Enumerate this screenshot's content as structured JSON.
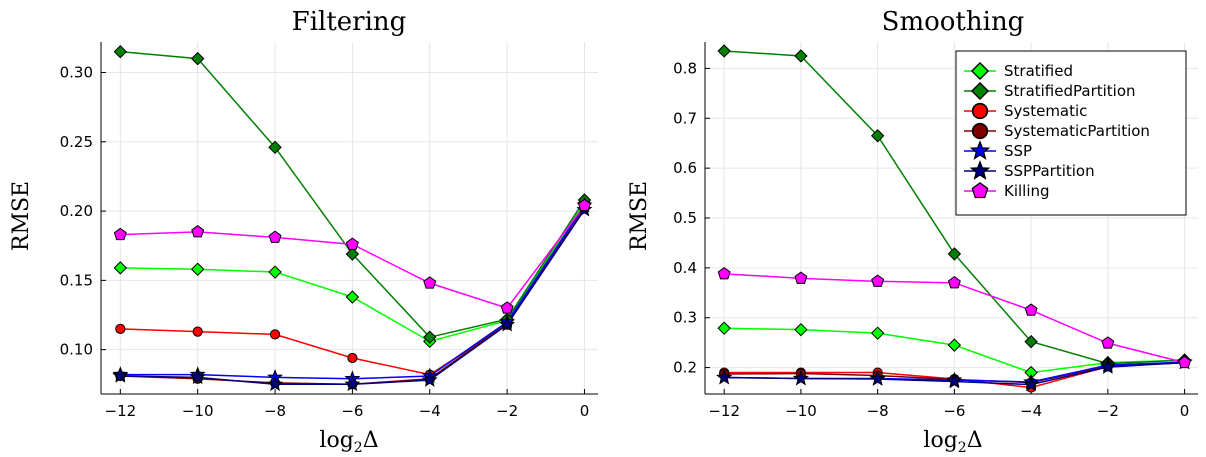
{
  "chart_data": [
    {
      "type": "line",
      "title": "Filtering",
      "xlabel": "log₂Δ",
      "ylabel": "RMSE",
      "x": [
        -12,
        -10,
        -8,
        -6,
        -4,
        -2,
        0
      ],
      "xlim": [
        -12.5,
        0.35
      ],
      "ylim": [
        0.068,
        0.322
      ],
      "xticks": [
        -12,
        -10,
        -8,
        -6,
        -4,
        -2,
        0
      ],
      "xtick_labels": [
        "−12",
        "−10",
        "−8",
        "−6",
        "−4",
        "−2",
        "0"
      ],
      "yticks": [
        0.1,
        0.15,
        0.2,
        0.25,
        0.3
      ],
      "ytick_labels": [
        "0.10",
        "0.15",
        "0.20",
        "0.25",
        "0.30"
      ],
      "grid": true,
      "legend": null,
      "series": [
        {
          "name": "Stratified",
          "color": "#00ff00",
          "marker": "diamond",
          "values": [
            0.159,
            0.158,
            0.156,
            0.138,
            0.106,
            0.121,
            0.206
          ]
        },
        {
          "name": "StratifiedPartition",
          "color": "#008000",
          "marker": "diamond",
          "values": [
            0.315,
            0.31,
            0.246,
            0.169,
            0.109,
            0.122,
            0.208
          ]
        },
        {
          "name": "Systematic",
          "color": "#ff0000",
          "marker": "circle",
          "values": [
            0.115,
            0.113,
            0.111,
            0.094,
            0.082,
            0.118,
            0.203
          ]
        },
        {
          "name": "SystematicPartition",
          "color": "#800000",
          "marker": "circle",
          "values": [
            0.081,
            0.079,
            0.076,
            0.075,
            0.079,
            0.119,
            0.202
          ]
        },
        {
          "name": "SSP",
          "color": "#0000ff",
          "marker": "star",
          "values": [
            0.082,
            0.082,
            0.08,
            0.079,
            0.081,
            0.12,
            0.204
          ]
        },
        {
          "name": "SSPPartition",
          "color": "#000080",
          "marker": "star",
          "values": [
            0.081,
            0.08,
            0.075,
            0.075,
            0.078,
            0.118,
            0.201
          ]
        },
        {
          "name": "Killing",
          "color": "#ff00ff",
          "marker": "pentagon",
          "values": [
            0.183,
            0.185,
            0.181,
            0.176,
            0.148,
            0.13,
            0.204
          ]
        }
      ]
    },
    {
      "type": "line",
      "title": "Smoothing",
      "xlabel": "log₂Δ",
      "ylabel": "RMSE",
      "x": [
        -12,
        -10,
        -8,
        -6,
        -4,
        -2,
        0
      ],
      "xlim": [
        -12.5,
        0.35
      ],
      "ylim": [
        0.147,
        0.853
      ],
      "xticks": [
        -12,
        -10,
        -8,
        -6,
        -4,
        -2,
        0
      ],
      "xtick_labels": [
        "−12",
        "−10",
        "−8",
        "−6",
        "−4",
        "−2",
        "0"
      ],
      "yticks": [
        0.2,
        0.3,
        0.4,
        0.5,
        0.6,
        0.7,
        0.8
      ],
      "ytick_labels": [
        "0.2",
        "0.3",
        "0.4",
        "0.5",
        "0.6",
        "0.7",
        "0.8"
      ],
      "grid": true,
      "legend": "top-right",
      "series": [
        {
          "name": "Stratified",
          "color": "#00ff00",
          "marker": "diamond",
          "values": [
            0.279,
            0.276,
            0.269,
            0.245,
            0.19,
            0.21,
            0.215
          ]
        },
        {
          "name": "StratifiedPartition",
          "color": "#008000",
          "marker": "diamond",
          "values": [
            0.835,
            0.825,
            0.665,
            0.428,
            0.252,
            0.208,
            0.215
          ]
        },
        {
          "name": "Systematic",
          "color": "#ff0000",
          "marker": "circle",
          "values": [
            0.19,
            0.19,
            0.19,
            0.177,
            0.16,
            0.202,
            0.21
          ]
        },
        {
          "name": "SystematicPartition",
          "color": "#800000",
          "marker": "circle",
          "values": [
            0.187,
            0.188,
            0.184,
            0.176,
            0.17,
            0.203,
            0.21
          ]
        },
        {
          "name": "SSP",
          "color": "#0000ff",
          "marker": "star",
          "values": [
            0.18,
            0.178,
            0.178,
            0.175,
            0.171,
            0.205,
            0.211
          ]
        },
        {
          "name": "SSPPartition",
          "color": "#000080",
          "marker": "star",
          "values": [
            0.18,
            0.178,
            0.177,
            0.172,
            0.166,
            0.201,
            0.21
          ]
        },
        {
          "name": "Killing",
          "color": "#ff00ff",
          "marker": "pentagon",
          "values": [
            0.388,
            0.379,
            0.373,
            0.37,
            0.315,
            0.249,
            0.21
          ]
        }
      ]
    }
  ]
}
